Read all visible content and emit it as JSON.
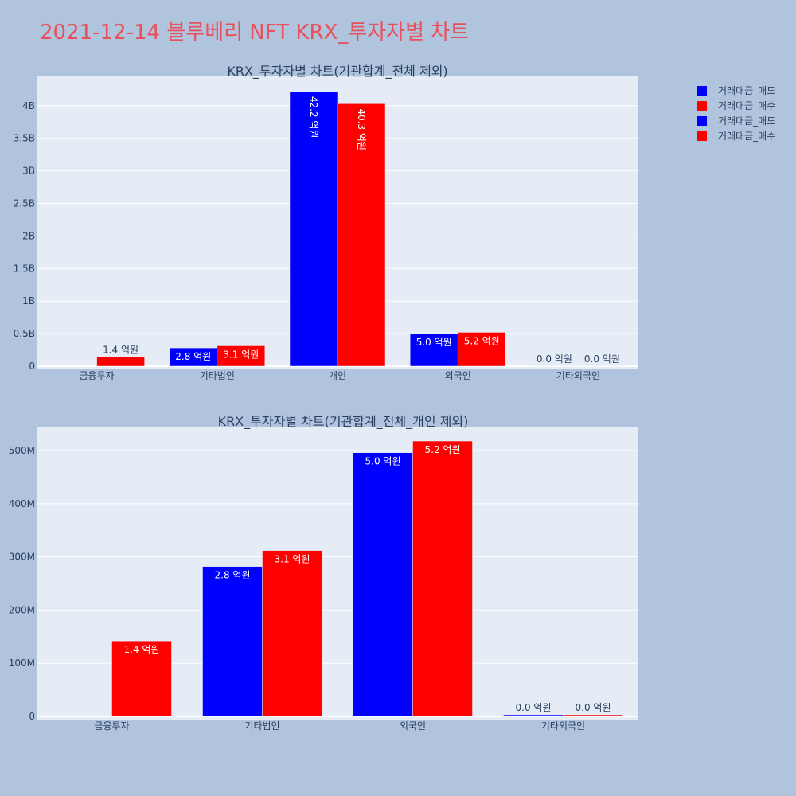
{
  "page_title": "2021-12-14 블루베리 NFT KRX_투자자별 차트",
  "colors": {
    "paper": "#b0c4de",
    "plot_bg": "#e5ecf6",
    "grid": "#ffffff",
    "title": "#e8505b",
    "text": "#2a3f5f",
    "sell": "#0000ff",
    "buy": "#ff0000"
  },
  "legend": {
    "placement": "top-right",
    "entries": [
      "거래대금_매도",
      "거래대금_매수",
      "거래대금_매도",
      "거래대금_매수"
    ]
  },
  "chart_data": [
    {
      "type": "bar",
      "title": "KRX_투자자별 차트(기관합계_전체 제외)",
      "categories": [
        "금융투자",
        "기타법인",
        "개인",
        "외국인",
        "기타외국인"
      ],
      "series": [
        {
          "name": "거래대금_매도",
          "color": "#0000ff",
          "values": [
            0,
            280000000,
            4220000000,
            500000000,
            3000000
          ],
          "labels": [
            "",
            "2.8 억원",
            "42.2 억원",
            "5.0 억원",
            "0.0 억원"
          ]
        },
        {
          "name": "거래대금_매수",
          "color": "#ff0000",
          "values": [
            142000000,
            312000000,
            4030000000,
            520000000,
            3000000
          ],
          "labels": [
            "1.4 억원",
            "3.1 억원",
            "40.3 억원",
            "5.2 억원",
            "0.0 억원"
          ]
        }
      ],
      "yticks": [
        0,
        500000000,
        1000000000,
        1500000000,
        2000000000,
        2500000000,
        3000000000,
        3500000000,
        4000000000
      ],
      "yticklabels": [
        "0",
        "0.5B",
        "1B",
        "1.5B",
        "2B",
        "2.5B",
        "3B",
        "3.5B",
        "4B"
      ],
      "ylim": [
        0,
        4450000000
      ],
      "grid": true
    },
    {
      "type": "bar",
      "title": "KRX_투자자별 차트(기관합계_전체_개인 제외)",
      "categories": [
        "금융투자",
        "기타법인",
        "외국인",
        "기타외국인"
      ],
      "series": [
        {
          "name": "거래대금_매도",
          "color": "#0000ff",
          "values": [
            0,
            282000000,
            496000000,
            3000000
          ],
          "labels": [
            "",
            "2.8 억원",
            "5.0 억원",
            "0.0 억원"
          ]
        },
        {
          "name": "거래대금_매수",
          "color": "#ff0000",
          "values": [
            142000000,
            312000000,
            518000000,
            3000000
          ],
          "labels": [
            "1.4 억원",
            "3.1 억원",
            "5.2 억원",
            "0.0 억원"
          ]
        }
      ],
      "yticks": [
        0,
        100000000,
        200000000,
        300000000,
        400000000,
        500000000
      ],
      "yticklabels": [
        "0",
        "100M",
        "200M",
        "300M",
        "400M",
        "500M"
      ],
      "ylim": [
        0,
        545000000
      ],
      "grid": true
    }
  ]
}
